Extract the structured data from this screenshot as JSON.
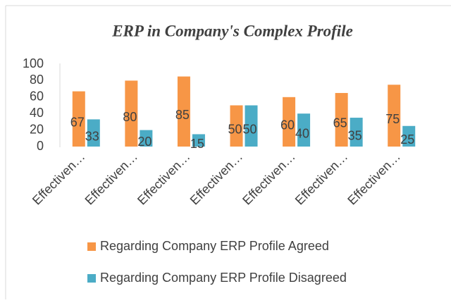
{
  "chart_data": {
    "type": "bar",
    "title": "ERP in Company's Complex Profile",
    "categories": [
      "Effectiven…",
      "Effectiven…",
      "Effectiven…",
      "Effectiven…",
      "Effectiven…",
      "Effectiven…",
      "Effectiven…"
    ],
    "series": [
      {
        "name": "Regarding Company ERP Profile Agreed",
        "color": "#f79646",
        "values": [
          67,
          80,
          85,
          50,
          60,
          65,
          75
        ]
      },
      {
        "name": "Regarding Company ERP Profile Disagreed",
        "color": "#4bacc6",
        "values": [
          33,
          20,
          15,
          50,
          40,
          35,
          25
        ]
      }
    ],
    "ylim": [
      0,
      100
    ],
    "yticks": [
      0,
      20,
      40,
      60,
      80,
      100
    ],
    "grid": false,
    "legend": "bottom"
  }
}
